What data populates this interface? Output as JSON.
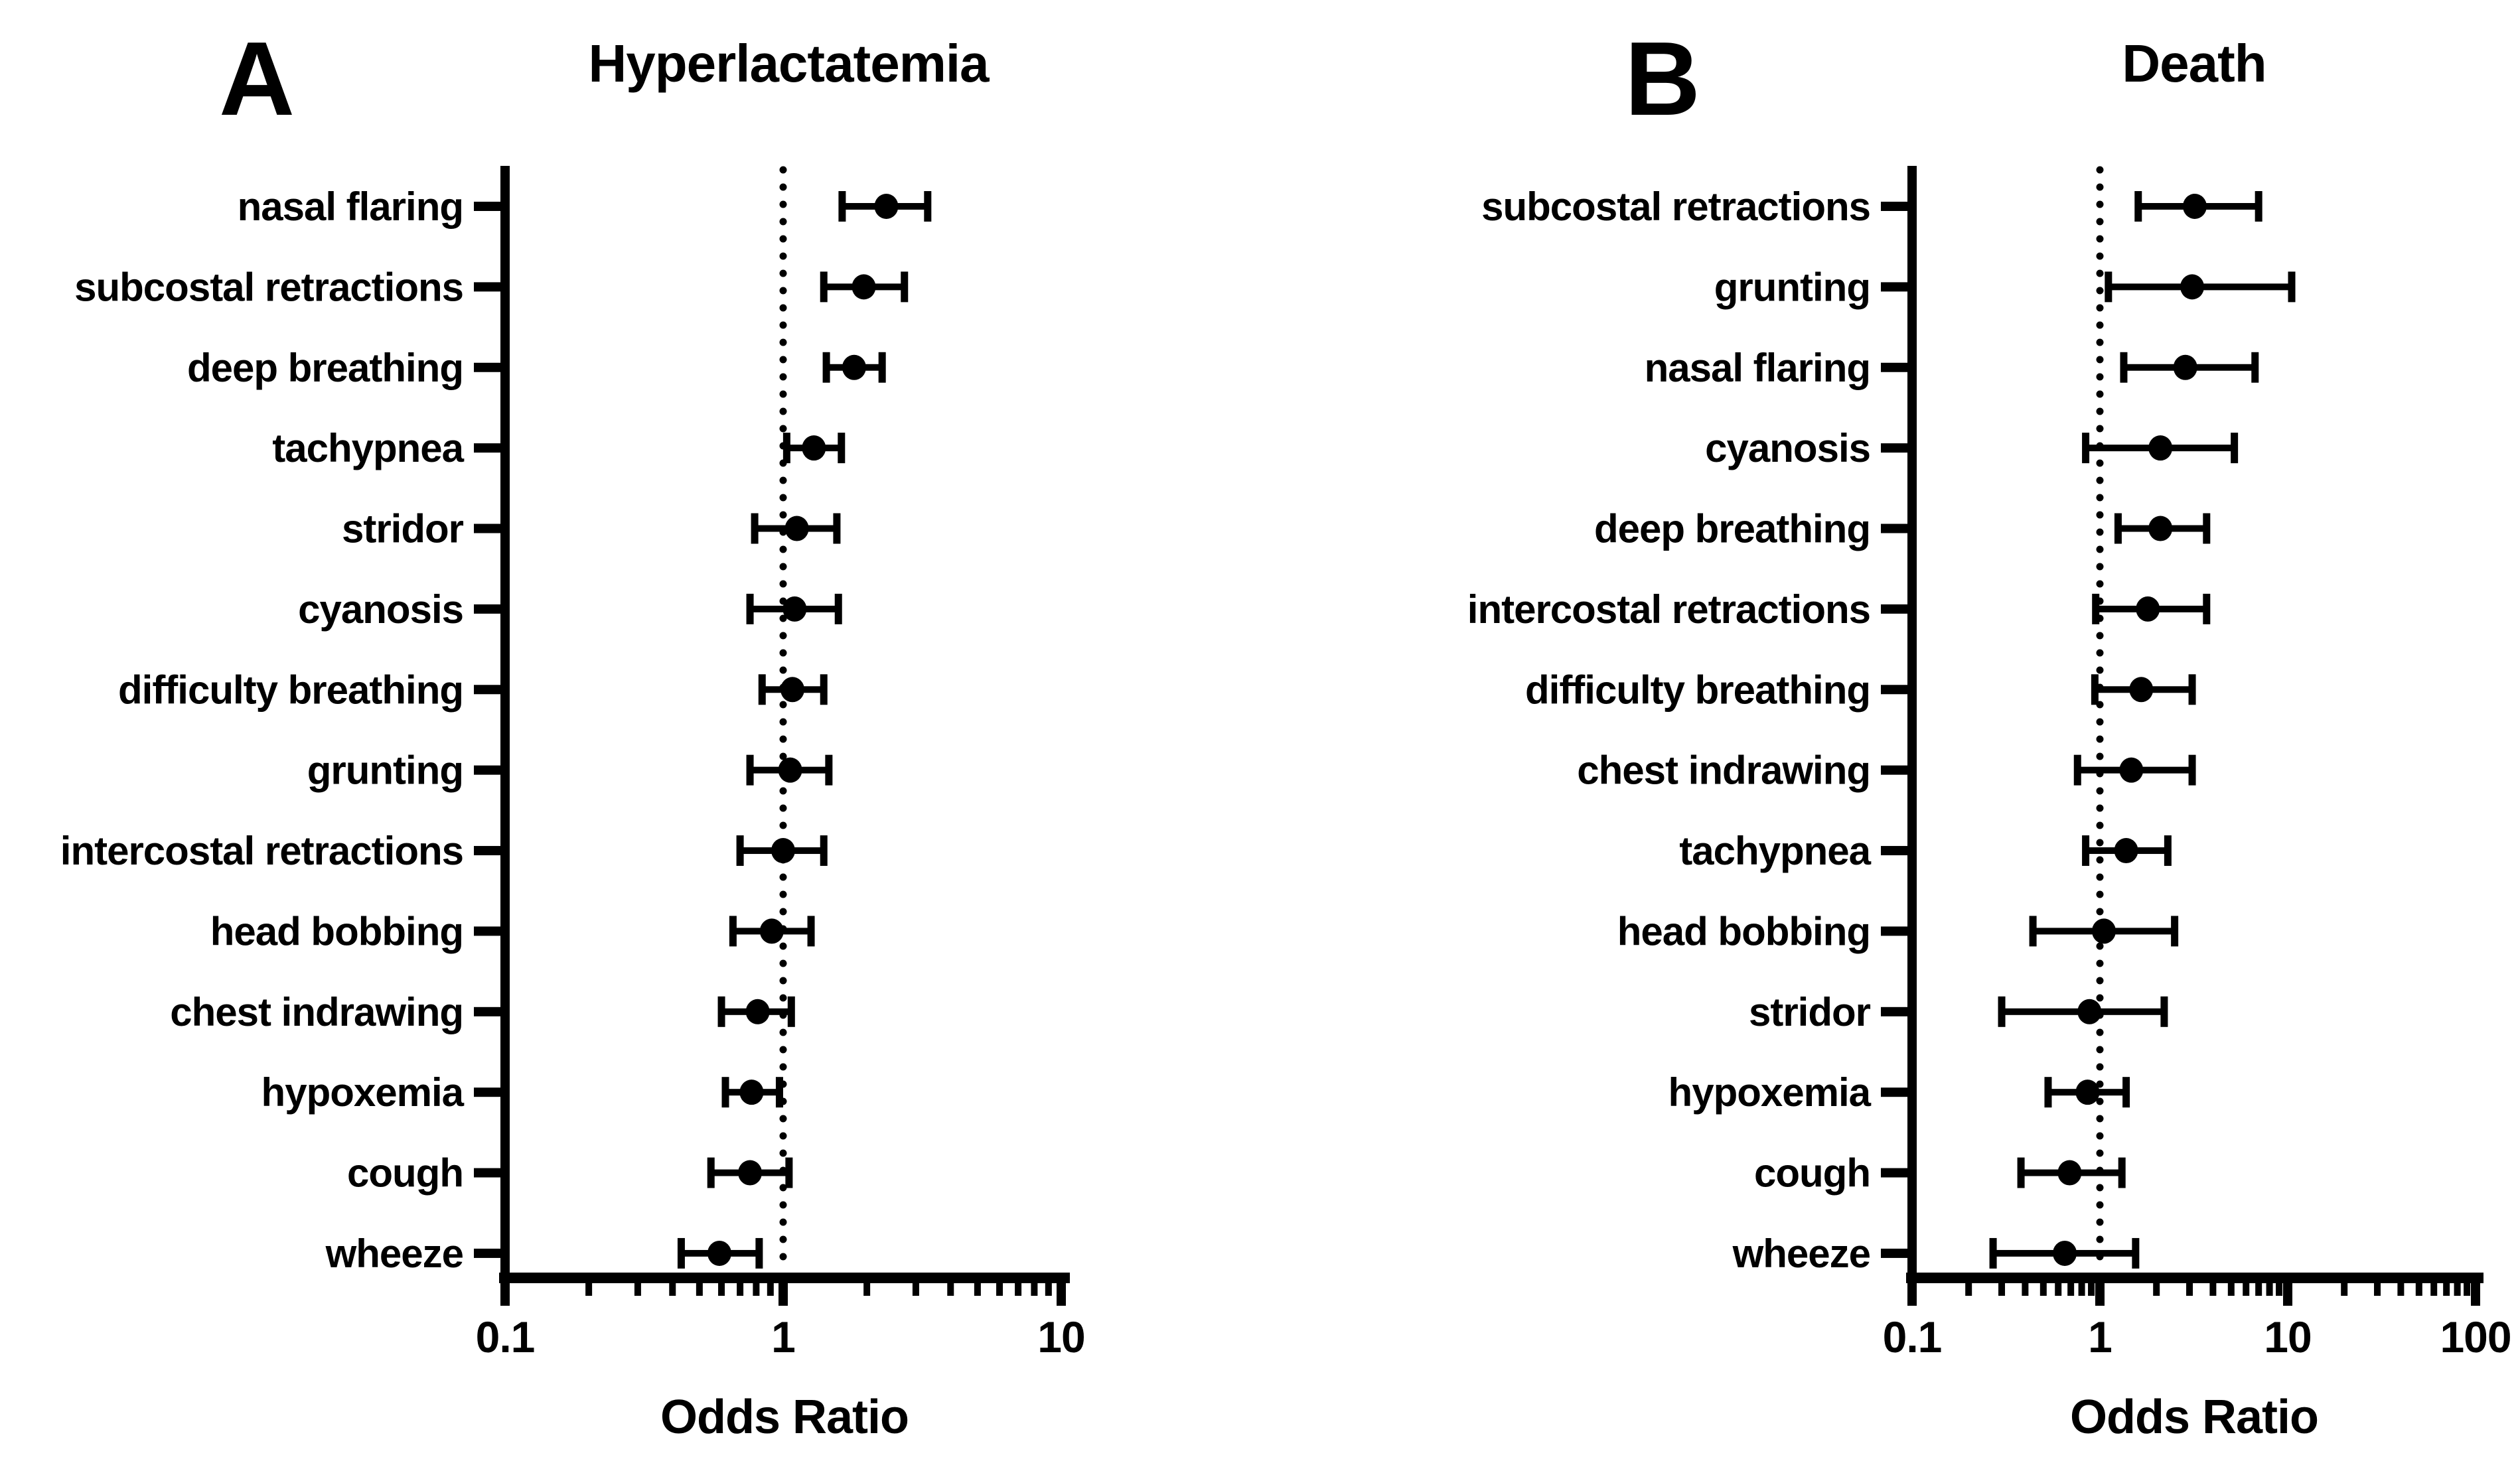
{
  "colors": {
    "ink": "#000000",
    "background": "#ffffff"
  },
  "chart_data": [
    {
      "type": "scatter",
      "subtype": "forest-plot",
      "panel_label": "A",
      "title": "Hyperlactatemia",
      "xlabel": "Odds Ratio",
      "x_axis": {
        "scale": "log",
        "min": 0.1,
        "max": 10,
        "ticks": [
          0.1,
          1,
          10
        ],
        "tick_labels": [
          "0.1",
          "1",
          "10"
        ],
        "reference_line": 1,
        "grid": false
      },
      "legend": null,
      "rows": [
        {
          "label": "nasal flaring",
          "or": 2.35,
          "ci_low": 1.63,
          "ci_high": 3.31
        },
        {
          "label": "subcostal retractions",
          "or": 1.95,
          "ci_low": 1.4,
          "ci_high": 2.73
        },
        {
          "label": "deep breathing",
          "or": 1.8,
          "ci_low": 1.43,
          "ci_high": 2.27
        },
        {
          "label": "tachypnea",
          "or": 1.29,
          "ci_low": 1.03,
          "ci_high": 1.62
        },
        {
          "label": "stridor",
          "or": 1.12,
          "ci_low": 0.79,
          "ci_high": 1.56
        },
        {
          "label": "cyanosis",
          "or": 1.1,
          "ci_low": 0.76,
          "ci_high": 1.58
        },
        {
          "label": "difficulty breathing",
          "or": 1.08,
          "ci_low": 0.84,
          "ci_high": 1.4
        },
        {
          "label": "grunting",
          "or": 1.06,
          "ci_low": 0.76,
          "ci_high": 1.46
        },
        {
          "label": "intercostal retractions",
          "or": 1.0,
          "ci_low": 0.7,
          "ci_high": 1.4
        },
        {
          "label": "head bobbing",
          "or": 0.91,
          "ci_low": 0.66,
          "ci_high": 1.26
        },
        {
          "label": "chest indrawing",
          "or": 0.81,
          "ci_low": 0.6,
          "ci_high": 1.07
        },
        {
          "label": "hypoxemia",
          "or": 0.77,
          "ci_low": 0.62,
          "ci_high": 0.97
        },
        {
          "label": "cough",
          "or": 0.76,
          "ci_low": 0.55,
          "ci_high": 1.05
        },
        {
          "label": "wheeze",
          "or": 0.59,
          "ci_low": 0.43,
          "ci_high": 0.82
        }
      ]
    },
    {
      "type": "scatter",
      "subtype": "forest-plot",
      "panel_label": "B",
      "title": "Death",
      "xlabel": "Odds Ratio",
      "x_axis": {
        "scale": "log",
        "min": 0.1,
        "max": 100,
        "ticks": [
          0.1,
          1,
          10,
          100
        ],
        "tick_labels": [
          "0.1",
          "1",
          "10",
          "100"
        ],
        "reference_line": 1,
        "grid": false
      },
      "legend": null,
      "rows": [
        {
          "label": "subcostal retractions",
          "or": 3.2,
          "ci_low": 1.6,
          "ci_high": 7.0
        },
        {
          "label": "grunting",
          "or": 3.1,
          "ci_low": 1.11,
          "ci_high": 10.5
        },
        {
          "label": "nasal flaring",
          "or": 2.85,
          "ci_low": 1.34,
          "ci_high": 6.7
        },
        {
          "label": "cyanosis",
          "or": 2.1,
          "ci_low": 0.84,
          "ci_high": 5.2
        },
        {
          "label": "deep breathing",
          "or": 2.1,
          "ci_low": 1.25,
          "ci_high": 3.7
        },
        {
          "label": "intercostal retractions",
          "or": 1.8,
          "ci_low": 0.95,
          "ci_high": 3.7
        },
        {
          "label": "difficulty breathing",
          "or": 1.66,
          "ci_low": 0.94,
          "ci_high": 3.1
        },
        {
          "label": "chest indrawing",
          "or": 1.47,
          "ci_low": 0.76,
          "ci_high": 3.1
        },
        {
          "label": "tachypnea",
          "or": 1.38,
          "ci_low": 0.84,
          "ci_high": 2.3
        },
        {
          "label": "head bobbing",
          "or": 1.05,
          "ci_low": 0.44,
          "ci_high": 2.5
        },
        {
          "label": "stridor",
          "or": 0.88,
          "ci_low": 0.3,
          "ci_high": 2.2
        },
        {
          "label": "hypoxemia",
          "or": 0.86,
          "ci_low": 0.53,
          "ci_high": 1.38
        },
        {
          "label": "cough",
          "or": 0.69,
          "ci_low": 0.38,
          "ci_high": 1.31
        },
        {
          "label": "wheeze",
          "or": 0.65,
          "ci_low": 0.27,
          "ci_high": 1.55
        }
      ]
    }
  ]
}
